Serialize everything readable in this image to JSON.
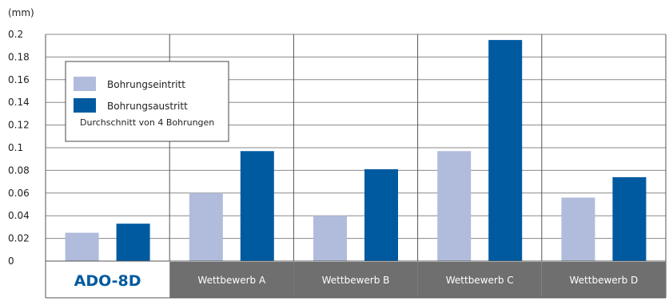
{
  "chart_data": {
    "type": "bar",
    "unit_label": "(mm)",
    "categories": [
      "ADO-8D",
      "Wettbewerb  A",
      "Wettbewerb  B",
      "Wettbewerb  C",
      "Wettbewerb  D"
    ],
    "series": [
      {
        "name": "Bohrungseintritt",
        "values": [
          0.025,
          0.06,
          0.04,
          0.097,
          0.056
        ]
      },
      {
        "name": "Bohrungsaustritt",
        "values": [
          0.033,
          0.097,
          0.081,
          0.195,
          0.074
        ]
      }
    ],
    "legend_note": "Durchschnitt von 4 Bohrungen",
    "y_ticks": [
      "0",
      "0.02",
      "0.04",
      "0.06",
      "0.08",
      "0.1",
      "0.12",
      "0.14",
      "0.16",
      "0.18",
      "0.2"
    ],
    "ylim": [
      0,
      0.2
    ],
    "grid": true,
    "legend_position": "top-left",
    "colors": {
      "series": [
        "#b1bcdc",
        "#005aa0"
      ],
      "highlight_text": "#005aa0",
      "category_bg": "#6f6f6f",
      "grid": "#8a8a8a"
    }
  }
}
